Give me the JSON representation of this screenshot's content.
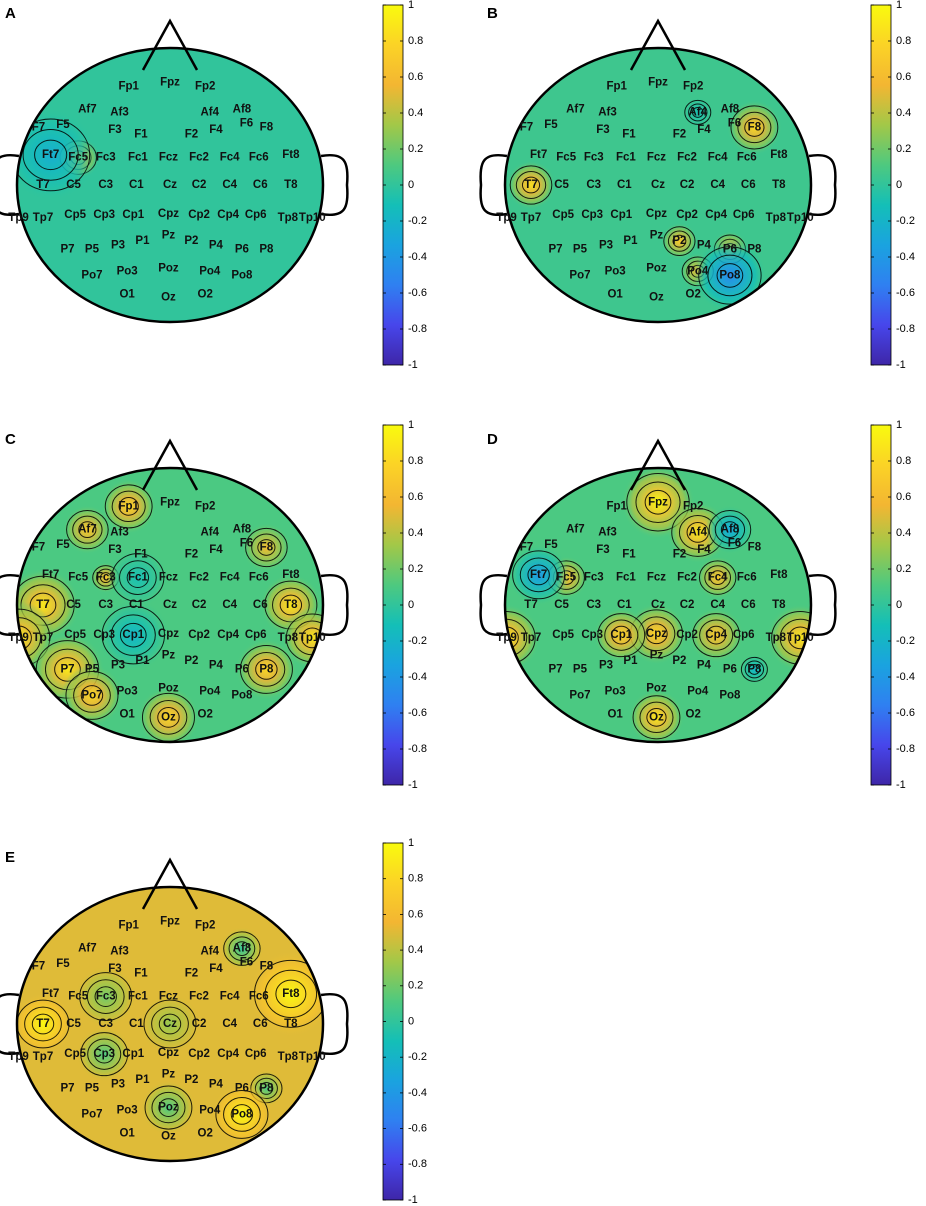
{
  "colors": {
    "colormap": [
      "#3e26a8",
      "#4746eb",
      "#2f80f1",
      "#1aa3df",
      "#14bfb7",
      "#4ec97f",
      "#a2c848",
      "#f3b632",
      "#fbd326",
      "#f9fb0e"
    ],
    "head_outline": "#000000"
  },
  "chart_data": {
    "type": "heatmap",
    "title": "",
    "electrodes": [
      "Fp1",
      "Fpz",
      "Fp2",
      "Af7",
      "Af3",
      "Af4",
      "Af8",
      "F7",
      "F5",
      "F3",
      "F1",
      "F2",
      "F4",
      "F6",
      "F8",
      "Ft7",
      "Fc5",
      "Fc3",
      "Fc1",
      "Fcz",
      "Fc2",
      "Fc4",
      "Fc6",
      "Ft8",
      "T7",
      "C5",
      "C3",
      "C1",
      "Cz",
      "C2",
      "C4",
      "C6",
      "T8",
      "Tp9",
      "Tp7",
      "Cp5",
      "Cp3",
      "Cp1",
      "Cpz",
      "Cp2",
      "Cp4",
      "Cp6",
      "Tp8",
      "Tp10",
      "P7",
      "P5",
      "P3",
      "P1",
      "Pz",
      "P2",
      "P4",
      "P6",
      "P8",
      "Po7",
      "Po3",
      "Poz",
      "Po4",
      "Po8",
      "O1",
      "Oz",
      "O2"
    ],
    "colorbar": {
      "range": [
        -1,
        1
      ],
      "ticks": [
        "1",
        "0.8",
        "0.6",
        "0.4",
        "0.2",
        "0",
        "-0.2",
        "-0.4",
        "-0.6",
        "-0.8",
        "-1"
      ]
    },
    "panels": [
      {
        "label": "A",
        "base": 0.0,
        "sources": [
          {
            "electrode": "Fc5",
            "value": 1.0,
            "spread": 0.07
          },
          {
            "electrode": "Ft7",
            "value": -0.25,
            "spread": 0.15
          }
        ]
      },
      {
        "label": "B",
        "base": 0.05,
        "sources": [
          {
            "electrode": "T7",
            "value": 0.85,
            "spread": 0.08
          },
          {
            "electrode": "F8",
            "value": 0.8,
            "spread": 0.09
          },
          {
            "electrode": "P2",
            "value": 0.7,
            "spread": 0.06
          },
          {
            "electrode": "P6",
            "value": 0.7,
            "spread": 0.06
          },
          {
            "electrode": "Po4",
            "value": 0.6,
            "spread": 0.06
          },
          {
            "electrode": "Af4",
            "value": -0.1,
            "spread": 0.05
          },
          {
            "electrode": "Po8",
            "value": -0.5,
            "spread": 0.12
          }
        ]
      },
      {
        "label": "C",
        "base": 0.1,
        "sources": [
          {
            "electrode": "T7",
            "value": 0.9,
            "spread": 0.12
          },
          {
            "electrode": "Tp9",
            "value": 0.9,
            "spread": 0.12
          },
          {
            "electrode": "P7",
            "value": 0.9,
            "spread": 0.12
          },
          {
            "electrode": "Po7",
            "value": 0.8,
            "spread": 0.1
          },
          {
            "electrode": "Oz",
            "value": 0.8,
            "spread": 0.1
          },
          {
            "electrode": "T8",
            "value": 0.9,
            "spread": 0.1
          },
          {
            "electrode": "Tp10",
            "value": 0.9,
            "spread": 0.1
          },
          {
            "electrode": "P8",
            "value": 0.8,
            "spread": 0.1
          },
          {
            "electrode": "Fp1",
            "value": 0.8,
            "spread": 0.09
          },
          {
            "electrode": "Af7",
            "value": 0.7,
            "spread": 0.08
          },
          {
            "electrode": "Fc3",
            "value": 0.7,
            "spread": 0.05
          },
          {
            "electrode": "F8",
            "value": 0.6,
            "spread": 0.08
          },
          {
            "electrode": "Cp1",
            "value": -0.2,
            "spread": 0.12
          },
          {
            "electrode": "Fc1",
            "value": -0.1,
            "spread": 0.1
          }
        ]
      },
      {
        "label": "D",
        "base": 0.1,
        "sources": [
          {
            "electrode": "Fpz",
            "value": 1.0,
            "spread": 0.12
          },
          {
            "electrode": "Af4",
            "value": 0.9,
            "spread": 0.1
          },
          {
            "electrode": "Tp9",
            "value": 0.9,
            "spread": 0.11
          },
          {
            "electrode": "Tp10",
            "value": 0.9,
            "spread": 0.11
          },
          {
            "electrode": "Cpz",
            "value": 0.8,
            "spread": 0.1
          },
          {
            "electrode": "Cp1",
            "value": 0.8,
            "spread": 0.09
          },
          {
            "electrode": "Cp4",
            "value": 0.7,
            "spread": 0.09
          },
          {
            "electrode": "Oz",
            "value": 0.9,
            "spread": 0.09
          },
          {
            "electrode": "Fc5",
            "value": 0.7,
            "spread": 0.07
          },
          {
            "electrode": "Fc4",
            "value": 0.7,
            "spread": 0.07
          },
          {
            "electrode": "Ft7",
            "value": -0.4,
            "spread": 0.1
          },
          {
            "electrode": "Af8",
            "value": -0.3,
            "spread": 0.08
          },
          {
            "electrode": "P8",
            "value": -0.2,
            "spread": 0.05
          }
        ]
      },
      {
        "label": "E",
        "base": 0.5,
        "sources": [
          {
            "electrode": "Cz",
            "value": 0.3,
            "spread": 0.1
          },
          {
            "electrode": "Fc3",
            "value": 0.2,
            "spread": 0.1
          },
          {
            "electrode": "Cp3",
            "value": 0.1,
            "spread": 0.09
          },
          {
            "electrode": "Poz",
            "value": 0.1,
            "spread": 0.09
          },
          {
            "electrode": "Af8",
            "value": 0.0,
            "spread": 0.07
          },
          {
            "electrode": "P8",
            "value": 0.1,
            "spread": 0.06
          },
          {
            "electrode": "Ft8",
            "value": 1.0,
            "spread": 0.14
          },
          {
            "electrode": "T7",
            "value": 1.0,
            "spread": 0.1
          },
          {
            "electrode": "Po8",
            "value": 1.0,
            "spread": 0.1
          }
        ]
      }
    ]
  }
}
